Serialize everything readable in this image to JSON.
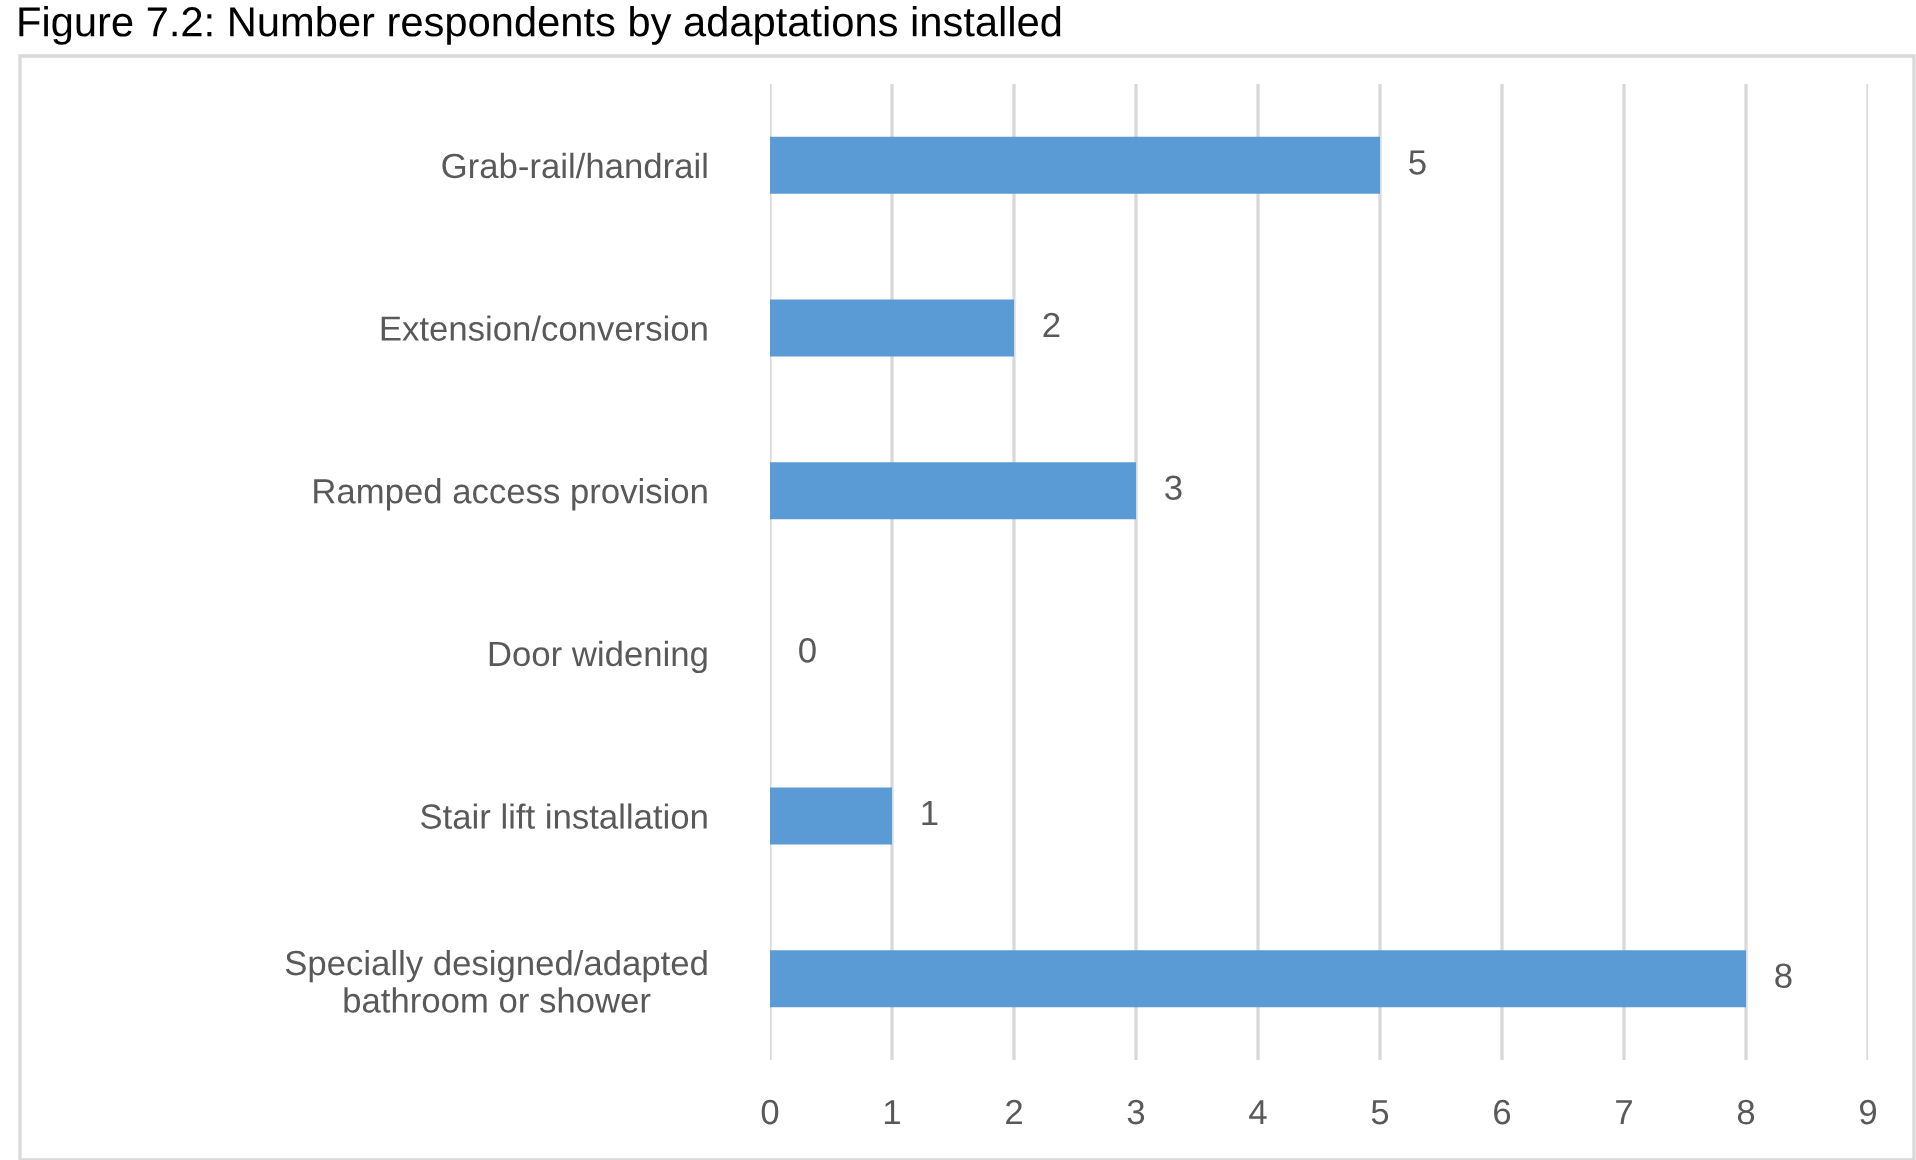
{
  "chart_data": {
    "type": "bar",
    "orientation": "horizontal",
    "title": "Figure 7.2: Number respondents by adaptations installed",
    "categories": [
      "Grab-rail/handrail",
      "Extension/conversion",
      "Ramped access provision",
      "Door widening",
      "Stair lift installation",
      "Specially designed/adapted\nbathroom or shower"
    ],
    "values": [
      5,
      2,
      3,
      0,
      1,
      8
    ],
    "color": "#5b9bd5",
    "xlim": [
      0,
      9
    ],
    "xticks": [
      0,
      1,
      2,
      3,
      4,
      5,
      6,
      7,
      8,
      9
    ],
    "grid": "x",
    "data_labels": true
  }
}
